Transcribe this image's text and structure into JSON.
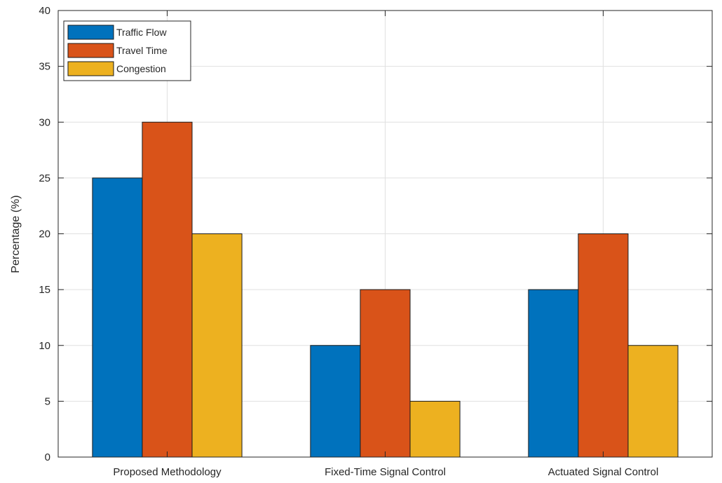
{
  "chart_data": {
    "type": "bar",
    "title": "",
    "xlabel": "",
    "ylabel": "Percentage (%)",
    "ylim": [
      0,
      40
    ],
    "yticks": [
      0,
      5,
      10,
      15,
      20,
      25,
      30,
      35,
      40
    ],
    "grid": true,
    "legend_position": "top-left",
    "categories": [
      "Proposed Methodology",
      "Fixed-Time Signal Control",
      "Actuated Signal Control"
    ],
    "series": [
      {
        "name": "Traffic Flow",
        "color": "#0072BD",
        "values": [
          25,
          10,
          15
        ]
      },
      {
        "name": "Travel Time",
        "color": "#D95319",
        "values": [
          30,
          15,
          20
        ]
      },
      {
        "name": "Congestion",
        "color": "#EDB120",
        "values": [
          20,
          5,
          10
        ]
      }
    ]
  }
}
